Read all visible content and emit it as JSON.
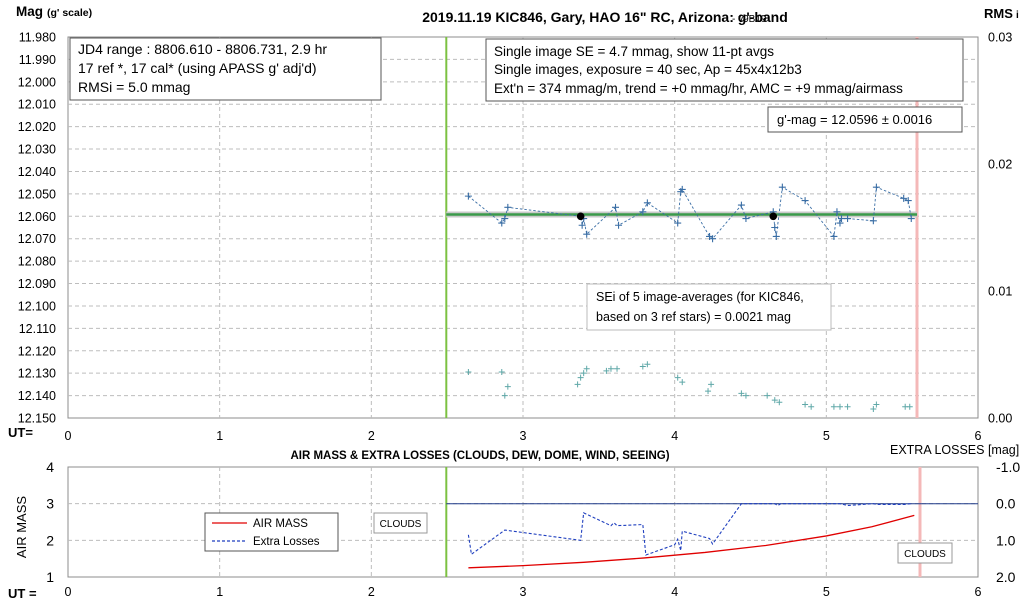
{
  "chart_data": [
    {
      "type": "scatter",
      "title": "2019.11.19 KIC846, Gary, HAO 16\" RC, Arizona: g'-band",
      "version": "- v9B19",
      "ylabel": "Mag",
      "ylabel_sub": "(g' scale)",
      "y2label": "RMS",
      "y2label_sub": "i",
      "xlabel": "UT=",
      "xlim": [
        0,
        6
      ],
      "ylim": [
        11.98,
        12.15
      ],
      "y_reversed": true,
      "y2lim": [
        0,
        0.03
      ],
      "x_ticks": [
        "0",
        "1",
        "2",
        "3",
        "4",
        "5",
        "6"
      ],
      "y_ticks": [
        "11.980",
        "11.990",
        "12.000",
        "12.010",
        "12.020",
        "12.030",
        "12.040",
        "12.050",
        "12.060",
        "12.070",
        "12.080",
        "12.090",
        "12.100",
        "12.110",
        "12.120",
        "12.130",
        "12.140",
        "12.150"
      ],
      "y2_ticks": [
        "0.00",
        "0.01",
        "0.02",
        "0.03"
      ],
      "grid": true,
      "session_start_ut": 2.5,
      "session_end_ut": 5.62,
      "mean_mag": 12.0596,
      "series": [
        {
          "name": "",
          "color": "#3a6ea5",
          "x": [
            2.64,
            2.86,
            2.88,
            2.9,
            3.38,
            3.39,
            3.4,
            3.42,
            3.61,
            3.63,
            3.79,
            3.82,
            4.02,
            4.04,
            4.05,
            4.23,
            4.25,
            4.44,
            4.47,
            4.65,
            4.66,
            4.67,
            4.71,
            4.86,
            5.05,
            5.07,
            5.09,
            5.1,
            5.14,
            5.31,
            5.33,
            5.51,
            5.54,
            5.56
          ],
          "y": [
            12.051,
            12.063,
            12.061,
            12.056,
            12.06,
            12.064,
            12.061,
            12.068,
            12.056,
            12.064,
            12.058,
            12.054,
            12.063,
            12.049,
            12.048,
            12.069,
            12.07,
            12.055,
            12.061,
            12.058,
            12.065,
            12.069,
            12.047,
            12.053,
            12.069,
            12.058,
            12.063,
            12.061,
            12.061,
            12.062,
            12.047,
            12.052,
            12.053,
            12.061
          ]
        },
        {
          "name": "",
          "color": "#000000",
          "x": [
            3.38,
            4.65
          ],
          "y": [
            12.06,
            12.06
          ]
        },
        {
          "name": "",
          "color": "#5fa8a8",
          "x": [
            2.64,
            2.86,
            2.88,
            2.9,
            3.36,
            3.38,
            3.4,
            3.42,
            3.55,
            3.58,
            3.62,
            3.79,
            3.82,
            4.02,
            4.05,
            4.22,
            4.24,
            4.44,
            4.47,
            4.61,
            4.66,
            4.69,
            4.86,
            4.9,
            5.05,
            5.09,
            5.14,
            5.31,
            5.33,
            5.52,
            5.55
          ],
          "y": [
            12.1295,
            12.1295,
            12.14,
            12.136,
            12.135,
            12.132,
            12.13,
            12.128,
            12.129,
            12.128,
            12.128,
            12.127,
            12.126,
            12.132,
            12.134,
            12.138,
            12.135,
            12.139,
            12.14,
            12.14,
            12.142,
            12.143,
            12.144,
            12.145,
            12.145,
            12.145,
            12.145,
            12.146,
            12.144,
            12.145,
            12.145
          ]
        }
      ],
      "annotations": {
        "info_left": [
          "JD4 range : 8806.610 - 8806.731,  2.9  hr",
          "17 ref *, 17 cal* (using APASS g' adj'd)",
          "RMSi = 5.0 mmag"
        ],
        "info_right": [
          "Single image SE = 4.7 mmag, show  11-pt avgs",
          "Single images, exposure = 40 sec, Ap = 45x4x12b3",
          "Ext'n = 374 mmag/m, trend =  +0 mmag/hr, AMC = +9 mmag/airmass"
        ],
        "gmag": "g'-mag = 12.0596 ± 0.0016",
        "sei": [
          "SEi of 5 image-averages (for KIC846,",
          "based on 3 ref stars) = 0.0021 mag"
        ]
      }
    },
    {
      "type": "line",
      "title": "AIR MASS & EXTRA LOSSES (CLOUDS, DEW, DOME, WIND, SEEING)",
      "ylabel": "AIR MASS",
      "y2label": "EXTRA LOSSES [mag]",
      "xlabel": "UT =",
      "xlim": [
        0,
        6
      ],
      "ylim": [
        1,
        4
      ],
      "y2lim": [
        -1.0,
        2.0
      ],
      "y2_reversed": true,
      "x_ticks": [
        "0",
        "1",
        "2",
        "3",
        "4",
        "5",
        "6"
      ],
      "y_ticks": [
        "1",
        "2",
        "3",
        "4"
      ],
      "y2_ticks": [
        "-1.0",
        "0.0",
        "1.0",
        "2.0"
      ],
      "grid": true,
      "legend": "left",
      "cloud_labels": [
        "CLOUDS",
        "CLOUDS"
      ],
      "series": [
        {
          "name": "AIR MASS",
          "color": "#e00000",
          "x": [
            2.64,
            3.0,
            3.4,
            3.8,
            4.2,
            4.6,
            5.0,
            5.3,
            5.58
          ],
          "y": [
            1.25,
            1.31,
            1.4,
            1.52,
            1.67,
            1.86,
            2.12,
            2.37,
            2.68
          ]
        },
        {
          "name": "Extra Losses",
          "color": "#1f3fbf",
          "x": [
            2.64,
            2.66,
            2.86,
            2.88,
            3.38,
            3.4,
            3.58,
            3.6,
            3.62,
            3.79,
            3.81,
            4.0,
            4.02,
            4.04,
            4.05,
            4.23,
            4.25,
            4.44,
            4.66,
            4.68,
            4.7,
            4.86,
            5.05,
            5.09,
            5.14,
            5.31,
            5.33,
            5.52,
            5.56
          ],
          "y": [
            0.85,
            1.38,
            0.78,
            0.72,
            1.0,
            0.25,
            0.6,
            0.52,
            0.6,
            0.57,
            1.4,
            1.12,
            0.97,
            1.28,
            0.75,
            0.95,
            1.1,
            0.0,
            0.0,
            0.05,
            0.0,
            0.0,
            0.0,
            0.0,
            0.05,
            0.0,
            0.02,
            0.02,
            0.0
          ]
        }
      ]
    }
  ]
}
